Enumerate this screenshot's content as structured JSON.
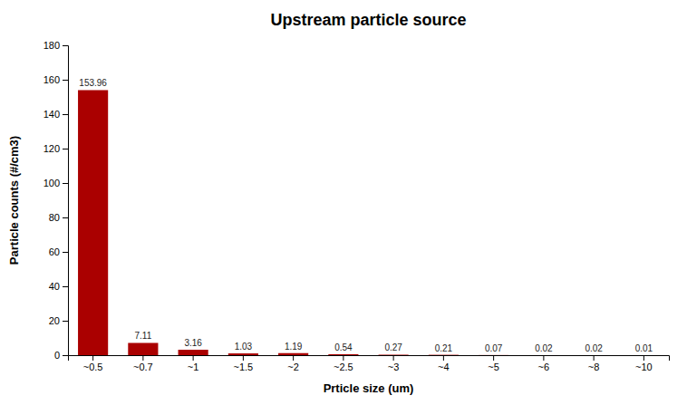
{
  "chart_data": {
    "type": "bar",
    "title": "Upstream particle source",
    "xlabel": "Prticle size (um)",
    "ylabel": "Particle counts (#/cm3)",
    "categories": [
      "~0.5",
      "~0.7",
      "~1",
      "~1.5",
      "~2",
      "~2.5",
      "~3",
      "~4",
      "~5",
      "~6",
      "~8",
      "~10"
    ],
    "values": [
      153.96,
      7.11,
      3.16,
      1.03,
      1.19,
      0.54,
      0.27,
      0.21,
      0.07,
      0.02,
      0.02,
      0.01
    ],
    "color": "#AA0000",
    "ylim": [
      0,
      180
    ],
    "yticks": [
      0,
      20,
      40,
      60,
      80,
      100,
      120,
      140,
      160,
      180
    ],
    "data_labels": true,
    "grid": false
  }
}
